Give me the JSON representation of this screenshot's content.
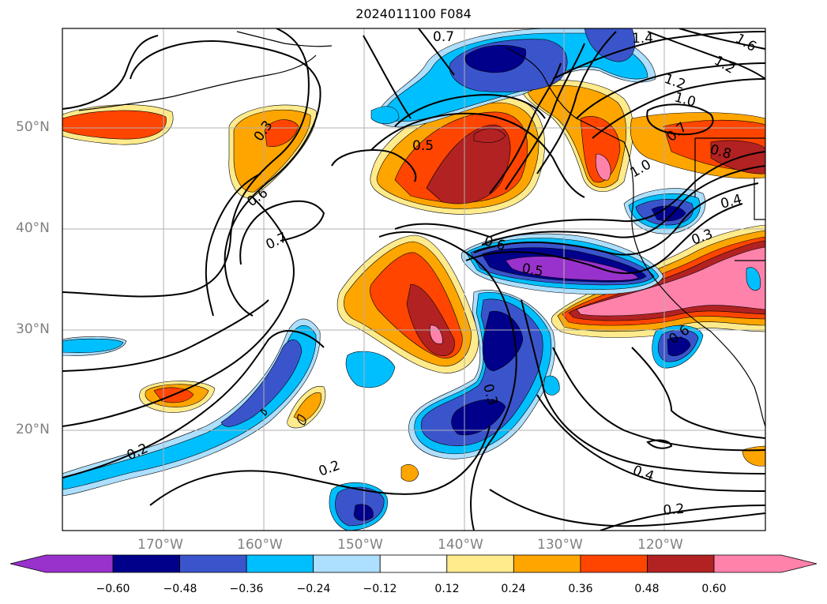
{
  "title": "2024011100 F084",
  "lat_labels": [
    "50°N",
    "40°N",
    "30°N",
    "20°N"
  ],
  "lon_labels": [
    "170°W",
    "160°W",
    "150°W",
    "140°W",
    "130°W",
    "120°W"
  ],
  "colorbar": {
    "levels": [
      "−0.60",
      "−0.48",
      "−0.36",
      "−0.24",
      "−0.12",
      "0.12",
      "0.24",
      "0.36",
      "0.48",
      "0.60"
    ],
    "colors": [
      "#9932CC",
      "#00008B",
      "#3A55CC",
      "#00BFFF",
      "#ADDFFF",
      "#FFFFFF",
      "#FFEB8C",
      "#FFA500",
      "#FF4500",
      "#B22222",
      "#FF82AB"
    ]
  },
  "contour_labels": [
    "0.7",
    "1.4",
    "1.6",
    "1.2",
    "1.2",
    "1.0",
    "0.3",
    "0.5",
    "0.7",
    "0.8",
    "1.0",
    "0.6",
    "0.7",
    "0.4",
    "0.6",
    "0.5",
    "0.3",
    "0.6",
    "0.3",
    "0.2",
    "0.2",
    "0.4",
    "0.2"
  ]
}
